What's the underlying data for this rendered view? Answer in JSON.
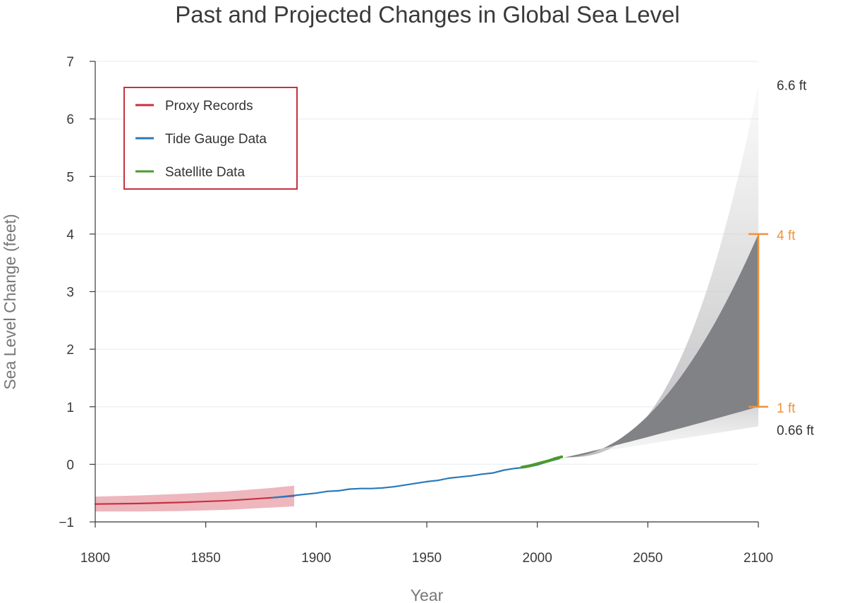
{
  "chart_data": {
    "type": "line",
    "title": "Past and Projected Changes in Global Sea Level",
    "xlabel": "Year",
    "ylabel": "Sea Level Change (feet)",
    "xlim": [
      1800,
      2100
    ],
    "ylim": [
      -1,
      7
    ],
    "x_ticks": [
      1800,
      1850,
      1900,
      1950,
      2000,
      2050,
      2100
    ],
    "y_ticks": [
      -1,
      0,
      1,
      2,
      3,
      4,
      5,
      6,
      7
    ],
    "grid": true,
    "legend": {
      "position": "top-left",
      "entries": [
        {
          "label": "Proxy Records",
          "color": "#c8313f"
        },
        {
          "label": "Tide Gauge Data",
          "color": "#2b79b9"
        },
        {
          "label": "Satellite Data",
          "color": "#4b9a2e"
        }
      ]
    },
    "series": [
      {
        "name": "Proxy Records",
        "color": "#c8313f",
        "band_color": "#e9a5ad",
        "x": [
          1800,
          1820,
          1840,
          1860,
          1880,
          1890
        ],
        "y": [
          -0.69,
          -0.68,
          -0.66,
          -0.63,
          -0.58,
          -0.55
        ],
        "band_halfwidth": [
          0.13,
          0.14,
          0.15,
          0.16,
          0.17,
          0.18
        ]
      },
      {
        "name": "Tide Gauge Data",
        "color": "#2b79b9",
        "x": [
          1880,
          1885,
          1890,
          1895,
          1900,
          1905,
          1910,
          1915,
          1920,
          1925,
          1930,
          1935,
          1940,
          1945,
          1950,
          1955,
          1960,
          1965,
          1970,
          1975,
          1980,
          1985,
          1990,
          1995,
          2000,
          2005,
          2010
        ],
        "y": [
          -0.58,
          -0.56,
          -0.54,
          -0.52,
          -0.5,
          -0.47,
          -0.46,
          -0.43,
          -0.42,
          -0.42,
          -0.41,
          -0.39,
          -0.36,
          -0.33,
          -0.3,
          -0.28,
          -0.24,
          -0.22,
          -0.2,
          -0.17,
          -0.15,
          -0.1,
          -0.07,
          -0.05,
          -0.01,
          0.05,
          0.1
        ]
      },
      {
        "name": "Satellite Data",
        "color": "#4b9a2e",
        "x": [
          1993,
          1996,
          1999,
          2002,
          2005,
          2008,
          2011
        ],
        "y": [
          -0.05,
          -0.03,
          0.0,
          0.03,
          0.06,
          0.1,
          0.13
        ]
      }
    ],
    "projection": {
      "start": [
        2012,
        0.12
      ],
      "outer_range_2100": [
        0.66,
        6.6
      ],
      "likely_range_2100": [
        1,
        4
      ],
      "color": "#808285"
    },
    "annotations": [
      {
        "label": "6.6 ft",
        "y": 6.6,
        "color": "#333333"
      },
      {
        "label": "4 ft",
        "y": 4,
        "color": "#f0923a"
      },
      {
        "label": "1 ft",
        "y": 1,
        "color": "#f0923a"
      },
      {
        "label": "0.66 ft",
        "y": 0.66,
        "color": "#333333"
      }
    ]
  }
}
